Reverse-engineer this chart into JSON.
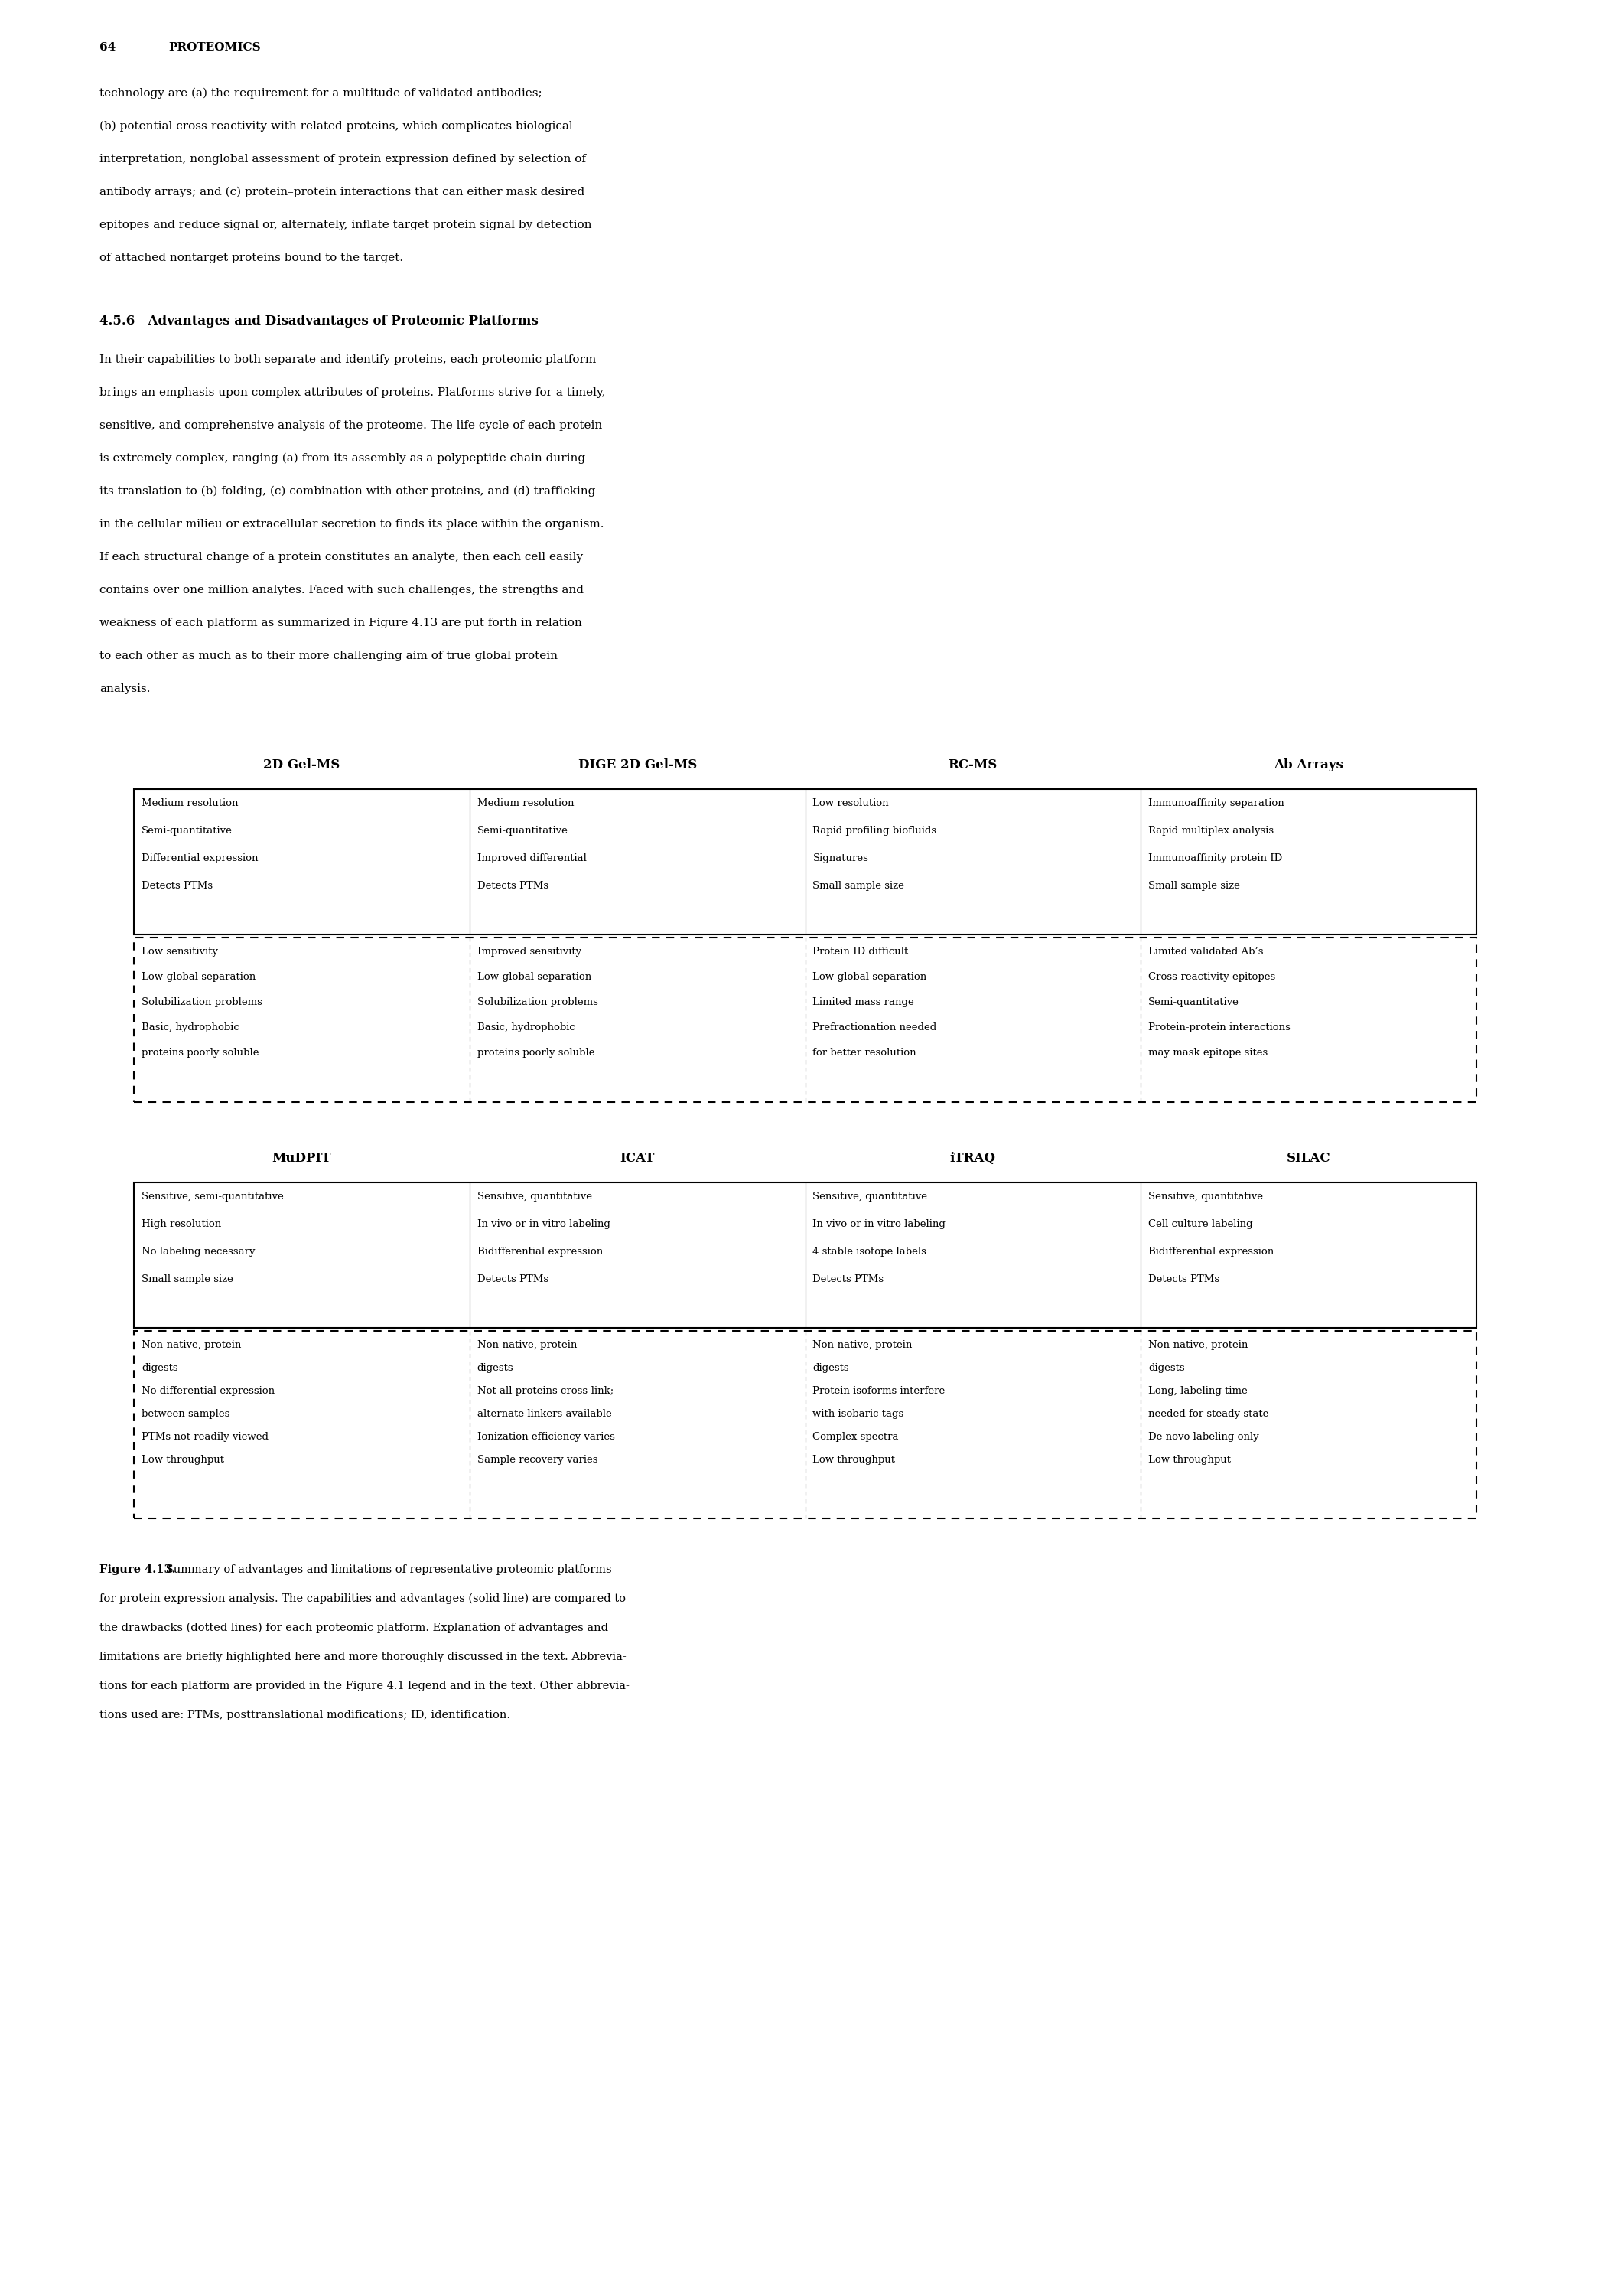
{
  "page_number": "64",
  "page_header": "PROTEOMICS",
  "background_color": "#ffffff",
  "para1_lines": [
    "technology are (a) the requirement for a multitude of validated antibodies;",
    "(b) potential cross-reactivity with related proteins, which complicates biological",
    "interpretation, nonglobal assessment of protein expression defined by selection of",
    "antibody arrays; and (c) protein–protein interactions that can either mask desired",
    "epitopes and reduce signal or, alternately, inflate target protein signal by detection",
    "of attached nontarget proteins bound to the target."
  ],
  "section_heading": "4.5.6   Advantages and Disadvantages of Proteomic Platforms",
  "para2_lines": [
    "In their capabilities to both separate and identify proteins, each proteomic platform",
    "brings an emphasis upon complex attributes of proteins. Platforms strive for a timely,",
    "sensitive, and comprehensive analysis of the proteome. The life cycle of each protein",
    "is extremely complex, ranging (a) from its assembly as a polypeptide chain during",
    "its translation to (b) folding, (c) combination with other proteins, and (d) trafficking",
    "in the cellular milieu or extracellular secretion to finds its place within the organism.",
    "If each structural change of a protein constitutes an analyte, then each cell easily",
    "contains over one million analytes. Faced with such challenges, the strengths and",
    "weakness of each platform as summarized in Figure 4.13 are put forth in relation",
    "to each other as much as to their more challenging aim of true global protein",
    "analysis."
  ],
  "table1_headers": [
    "2D Gel-MS",
    "DIGE 2D Gel-MS",
    "RC-MS",
    "Ab Arrays"
  ],
  "table1_adv": [
    [
      "Medium resolution",
      "Semi-quantitative",
      "Differential expression",
      "Detects PTMs"
    ],
    [
      "Medium resolution",
      "Semi-quantitative",
      "Improved differential",
      "Detects PTMs"
    ],
    [
      "Low resolution",
      "Rapid profiling biofluids",
      "Signatures",
      "Small sample size"
    ],
    [
      "Immunoaffinity separation",
      "Rapid multiplex analysis",
      "Immunoaffinity protein ID",
      "Small sample size"
    ]
  ],
  "table1_disadv": [
    [
      "Low sensitivity",
      "Low-global separation",
      "Solubilization problems",
      "Basic, hydrophobic",
      "proteins poorly soluble"
    ],
    [
      "Improved sensitivity",
      "Low-global separation",
      "Solubilization problems",
      "Basic, hydrophobic",
      "proteins poorly soluble"
    ],
    [
      "Protein ID difficult",
      "Low-global separation",
      "Limited mass range",
      "Prefractionation needed",
      "for better resolution"
    ],
    [
      "Limited validated Ab’s",
      "Cross-reactivity epitopes",
      "Semi-quantitative",
      "Protein-protein interactions",
      "may mask epitope sites"
    ]
  ],
  "table2_headers": [
    "MuDPIT",
    "ICAT",
    "iTRAQ",
    "SILAC"
  ],
  "table2_adv": [
    [
      "Sensitive, semi-quantitative",
      "High resolution",
      "No labeling necessary",
      "Small sample size"
    ],
    [
      "Sensitive, quantitative",
      "In vivo or in vitro labeling",
      "Bidifferential expression",
      "Detects PTMs"
    ],
    [
      "Sensitive, quantitative",
      "In vivo or in vitro labeling",
      "4 stable isotope labels",
      "Detects PTMs"
    ],
    [
      "Sensitive, quantitative",
      "Cell culture labeling",
      "Bidifferential expression",
      "Detects PTMs"
    ]
  ],
  "table2_disadv": [
    [
      "Non-native, protein",
      "digests",
      "No differential expression",
      "between samples",
      "PTMs not readily viewed",
      "Low throughput"
    ],
    [
      "Non-native, protein",
      "digests",
      "Not all proteins cross-link;",
      "alternate linkers available",
      "Ionization efficiency varies",
      "Sample recovery varies"
    ],
    [
      "Non-native, protein",
      "digests",
      "Protein isoforms interfere",
      "with isobaric tags",
      "Complex spectra",
      "Low throughput"
    ],
    [
      "Non-native, protein",
      "digests",
      "Long, labeling time",
      "needed for steady state",
      "De novo labeling only",
      "Low throughput"
    ]
  ],
  "caption_bold": "Figure 4.13.",
  "caption_lines": [
    " Summary of advantages and limitations of representative proteomic platforms",
    "for protein expression analysis. The capabilities and advantages (solid line) are compared to",
    "the drawbacks (dotted lines) for each proteomic platform. Explanation of advantages and",
    "limitations are briefly highlighted here and more thoroughly discussed in the text. Abbrevia-",
    "tions for each platform are provided in the Figure 4.1 legend and in the text. Other abbrevia-",
    "tions used are: PTMs, posttranslational modifications; ID, identification."
  ]
}
